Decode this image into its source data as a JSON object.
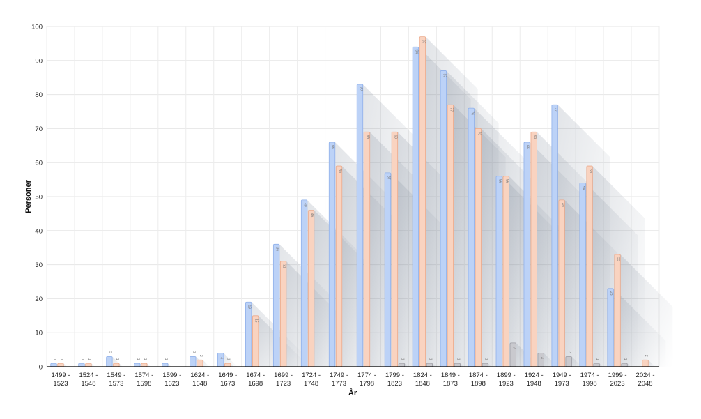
{
  "chart_data": {
    "type": "bar",
    "xlabel": "År",
    "ylabel": "Personer",
    "ylim": [
      0,
      100
    ],
    "yticks": [
      0,
      10,
      20,
      30,
      40,
      50,
      60,
      70,
      80,
      90,
      100
    ],
    "grid": true,
    "categories": [
      [
        "1499 -",
        "1523"
      ],
      [
        "1524 -",
        "1548"
      ],
      [
        "1549 -",
        "1573"
      ],
      [
        "1574 -",
        "1598"
      ],
      [
        "1599 -",
        "1623"
      ],
      [
        "1624 -",
        "1648"
      ],
      [
        "1649 -",
        "1673"
      ],
      [
        "1674 -",
        "1698"
      ],
      [
        "1699 -",
        "1723"
      ],
      [
        "1724 -",
        "1748"
      ],
      [
        "1749 -",
        "1773"
      ],
      [
        "1774 -",
        "1798"
      ],
      [
        "1799 -",
        "1823"
      ],
      [
        "1824 -",
        "1848"
      ],
      [
        "1849 -",
        "1873"
      ],
      [
        "1874 -",
        "1898"
      ],
      [
        "1899 -",
        "1923"
      ],
      [
        "1924 -",
        "1948"
      ],
      [
        "1949 -",
        "1973"
      ],
      [
        "1974 -",
        "1998"
      ],
      [
        "1999 -",
        "2023"
      ],
      [
        "2024 -",
        "2048"
      ]
    ],
    "series": [
      {
        "color": "#bcd2f7",
        "stroke": "#8fb0ea",
        "values": [
          1,
          1,
          3,
          1,
          1,
          3,
          4,
          19,
          36,
          49,
          66,
          83,
          57,
          94,
          87,
          76,
          56,
          66,
          77,
          54,
          23,
          0
        ]
      },
      {
        "color": "#f9d3c0",
        "stroke": "#eba98a",
        "values": [
          1,
          1,
          1,
          1,
          0,
          2,
          1,
          15,
          31,
          46,
          59,
          69,
          69,
          97,
          77,
          70,
          56,
          69,
          49,
          59,
          33,
          2
        ]
      },
      {
        "color": "#c9c9ce",
        "stroke": "#9d9da4",
        "values": [
          0,
          0,
          0,
          0,
          0,
          0,
          0,
          0,
          0,
          0,
          0,
          0,
          1,
          1,
          1,
          1,
          7,
          4,
          3,
          1,
          1,
          0
        ]
      }
    ]
  }
}
